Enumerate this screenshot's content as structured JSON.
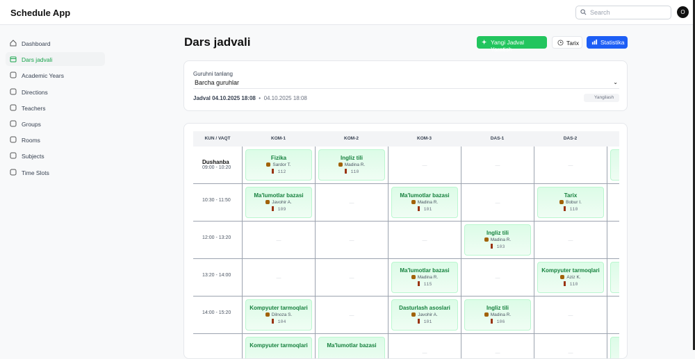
{
  "app": {
    "title": "Schedule App",
    "search_placeholder": "Search",
    "avatar": "O"
  },
  "sidebar": {
    "items": [
      {
        "label": "Dashboard",
        "icon": "home-icon"
      },
      {
        "label": "Dars jadvali",
        "icon": "calendar-icon",
        "active": true
      },
      {
        "label": "Academic Years",
        "icon": "graduation-cap-icon"
      },
      {
        "label": "Directions",
        "icon": "trending-icon"
      },
      {
        "label": "Teachers",
        "icon": "users-icon"
      },
      {
        "label": "Groups",
        "icon": "group-icon"
      },
      {
        "label": "Rooms",
        "icon": "building-icon"
      },
      {
        "label": "Subjects",
        "icon": "book-icon"
      },
      {
        "label": "Time Slots",
        "icon": "calendar-clock-icon"
      }
    ]
  },
  "page": {
    "title": "Dars jadvali",
    "buttons": {
      "create": "Yangi Jadval Yaratish",
      "history": "Tarix",
      "stats": "Statistika"
    }
  },
  "filter": {
    "label": "Guruhni tanlang",
    "selected": "Barcha guruhlar",
    "jadval": "Jadval 04.10.2025 18:08",
    "date": "04.10.2025 18:08",
    "refresh": "Yangilash"
  },
  "colors": {
    "accent": "#16a34a",
    "create_button": "#22c55e",
    "stats_button": "#1d5ef5"
  },
  "table": {
    "corner": "KUN / VAQT",
    "columns": [
      "KOM-1",
      "KOM-2",
      "KOM-3",
      "DAS-1",
      "DAS-2",
      ""
    ],
    "empty": "—",
    "rows": [
      {
        "day": "Dushanba",
        "time": "09:00 - 10:20",
        "cells": [
          {
            "subject": "Fizika",
            "teacher": "Sardor T.",
            "room": "112"
          },
          {
            "subject": "Ingliz tili",
            "teacher": "Madina R.",
            "room": "110"
          },
          null,
          null,
          null,
          {}
        ]
      },
      {
        "day": "",
        "time": "10:30 - 11:50",
        "cells": [
          {
            "subject": "Ma'lumotlar bazasi",
            "teacher": "Javohir A.",
            "room": "109"
          },
          null,
          {
            "subject": "Ma'lumotlar bazasi",
            "teacher": "Madina R.",
            "room": "101"
          },
          null,
          {
            "subject": "Tarix",
            "teacher": "Bobur I.",
            "room": "110"
          },
          null
        ]
      },
      {
        "day": "",
        "time": "12:00 - 13:20",
        "cells": [
          null,
          null,
          null,
          {
            "subject": "Ingliz tili",
            "teacher": "Madina R.",
            "room": "103"
          },
          null,
          null
        ]
      },
      {
        "day": "",
        "time": "13:20 - 14:00",
        "cells": [
          null,
          null,
          {
            "subject": "Ma'lumotlar bazasi",
            "teacher": "Madina R.",
            "room": "115"
          },
          null,
          {
            "subject": "Kompyuter tarmoqlari",
            "teacher": "Aziz K.",
            "room": "110"
          },
          {}
        ]
      },
      {
        "day": "",
        "time": "14:00 - 15:20",
        "cells": [
          {
            "subject": "Kompyuter tarmoqlari",
            "teacher": "Dilnoza S.",
            "room": "104"
          },
          null,
          {
            "subject": "Dasturlash asoslari",
            "teacher": "Javohir A.",
            "room": "101"
          },
          {
            "subject": "Ingliz tili",
            "teacher": "Madina R.",
            "room": "106"
          },
          null,
          null
        ]
      },
      {
        "day": "",
        "time": "",
        "cells": [
          {
            "subject": "Kompyuter tarmoqlari"
          },
          {
            "subject": "Ma'lumotlar bazasi"
          },
          null,
          null,
          null,
          {}
        ]
      }
    ]
  }
}
